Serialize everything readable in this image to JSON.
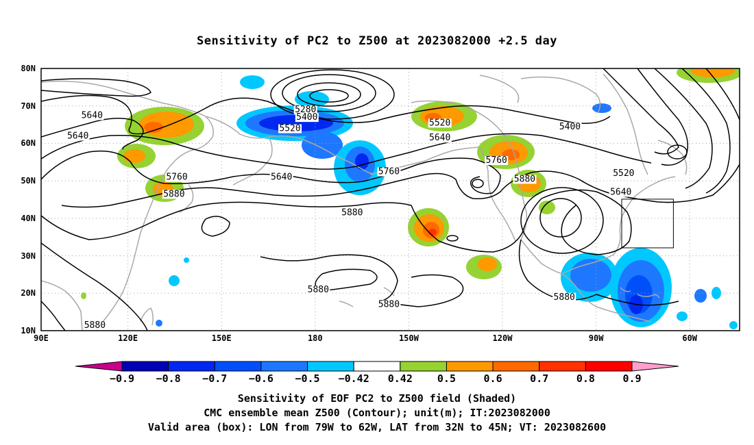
{
  "title": "Sensitivity of PC2 to Z500 at 2023082000 +2.5 day",
  "map": {
    "lat_labels": [
      "80N",
      "70N",
      "60N",
      "50N",
      "40N",
      "30N",
      "20N",
      "10N"
    ],
    "lon_labels": [
      "90E",
      "120E",
      "150E",
      "180",
      "150W",
      "120W",
      "90W",
      "60W"
    ],
    "contour_labels": [
      {
        "text": "5640",
        "lon": 108,
        "lat": 67.5
      },
      {
        "text": "5640",
        "lon": 103,
        "lat": 62
      },
      {
        "text": "5280",
        "lon": 183.5,
        "lat": 69
      },
      {
        "text": "5400",
        "lon": 184,
        "lat": 67
      },
      {
        "text": "5520",
        "lon": 178,
        "lat": 64
      },
      {
        "text": "5520",
        "lon": 231,
        "lat": 65.5
      },
      {
        "text": "5640",
        "lon": 231,
        "lat": 61.5
      },
      {
        "text": "5400",
        "lon": 277,
        "lat": 64.5
      },
      {
        "text": "5520",
        "lon": 296,
        "lat": 52
      },
      {
        "text": "5640",
        "lon": 295,
        "lat": 47
      },
      {
        "text": "5760",
        "lon": 138,
        "lat": 51
      },
      {
        "text": "5640",
        "lon": 175,
        "lat": 51
      },
      {
        "text": "5760",
        "lon": 213,
        "lat": 52.5
      },
      {
        "text": "5760",
        "lon": 251,
        "lat": 55.5
      },
      {
        "text": "5880",
        "lon": 261,
        "lat": 50.5
      },
      {
        "text": "5880",
        "lon": 137,
        "lat": 46.5
      },
      {
        "text": "5880",
        "lon": 200,
        "lat": 41.5
      },
      {
        "text": "5880",
        "lon": 188,
        "lat": 21
      },
      {
        "text": "5880",
        "lon": 213,
        "lat": 17
      },
      {
        "text": "5880",
        "lon": 275,
        "lat": 19
      },
      {
        "text": "5880",
        "lon": 109,
        "lat": 11.5
      }
    ]
  },
  "colorbar": {
    "labels": [
      "-0.9",
      "-0.8",
      "-0.7",
      "-0.6",
      "-0.5",
      "-0.42",
      "0.42",
      "0.5",
      "0.6",
      "0.7",
      "0.8",
      "0.9"
    ],
    "colors": [
      "#0000b4",
      "#0028f0",
      "#0050fa",
      "#1e78ff",
      "#00c8ff",
      "#ffffff",
      "#96d232",
      "#ff9900",
      "#ff6a00",
      "#ff3200",
      "#ff0000"
    ],
    "low_end_color": "#c8008c",
    "high_end_color": "#ff9ecf"
  },
  "captions": [
    "Sensitivity of EOF PC2 to Z500 field (Shaded)",
    "CMC ensemble mean Z500 (Contour); unit(m); IT:2023082000",
    "Valid area (box): LON from 79W to 62W, LAT from 32N to 45N; VT: 2023082600"
  ],
  "valid_box": {
    "lon_min": -79,
    "lon_max": -62,
    "lat_min": 32,
    "lat_max": 45
  }
}
